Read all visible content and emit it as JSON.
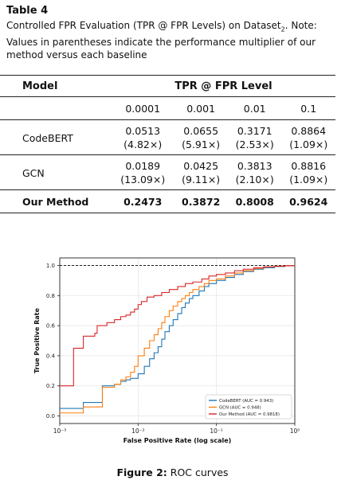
{
  "table": {
    "title": "Table 4",
    "caption_main": "Controlled FPR Evaluation (TPR @ FPR Levels) on Dataset",
    "caption_sub": "2",
    "caption_note": ". Note: Values in parentheses indicate the performance multiplier of our method versus each baseline",
    "header_model": "Model",
    "header_group": "TPR @ FPR Level",
    "fpr_levels": [
      "0.0001",
      "0.001",
      "0.01",
      "0.1"
    ],
    "rows": [
      {
        "model": "CodeBERT",
        "values": [
          "0.0513",
          "0.0655",
          "0.3171",
          "0.8864"
        ],
        "multipliers": [
          "(4.82×)",
          "(5.91×)",
          "(2.53×)",
          "(1.09×)"
        ]
      },
      {
        "model": "GCN",
        "values": [
          "0.0189",
          "0.0425",
          "0.3813",
          "0.8816"
        ],
        "multipliers": [
          "(13.09×)",
          "(9.11×)",
          "(2.10×)",
          "(1.09×)"
        ]
      },
      {
        "model": "Our Method",
        "values": [
          "0.2473",
          "0.3872",
          "0.8008",
          "0.9624"
        ]
      }
    ]
  },
  "figure": {
    "caption_label": "Figure 2:",
    "caption_text": " ROC curves"
  },
  "chart_data": {
    "type": "line",
    "xlabel": "False Positive Rate (log scale)",
    "ylabel": "True Positive Rate",
    "xscale": "log",
    "xlim": [
      0.001,
      1
    ],
    "ylim": [
      -0.05,
      1.05
    ],
    "x_tick_labels": [
      "10⁻³",
      "10⁻²",
      "10⁻¹",
      "10⁰"
    ],
    "x_ticks": [
      0.001,
      0.01,
      0.1,
      1
    ],
    "y_ticks": [
      0.0,
      0.2,
      0.4,
      0.6,
      0.8,
      1.0
    ],
    "y_tick_labels": [
      "0.0",
      "0.2",
      "0.4",
      "0.6",
      "0.8",
      "1.0"
    ],
    "grid": true,
    "legend_position": "lower-right",
    "reference_line": {
      "y": 1.0,
      "style": "dashed",
      "color": "#000000"
    },
    "series": [
      {
        "name": "CodeBERT (AUC = 0.943)",
        "color": "#1f77b4",
        "x": [
          0.001,
          0.002,
          0.002,
          0.0035,
          0.0035,
          0.005,
          0.006,
          0.007,
          0.008,
          0.009,
          0.01,
          0.012,
          0.014,
          0.016,
          0.018,
          0.02,
          0.022,
          0.025,
          0.028,
          0.032,
          0.036,
          0.04,
          0.045,
          0.05,
          0.06,
          0.07,
          0.08,
          0.1,
          0.13,
          0.17,
          0.22,
          0.3,
          0.4,
          0.55,
          0.75,
          1.0
        ],
        "y": [
          0.05,
          0.05,
          0.09,
          0.09,
          0.2,
          0.21,
          0.23,
          0.24,
          0.25,
          0.25,
          0.28,
          0.33,
          0.38,
          0.42,
          0.46,
          0.51,
          0.56,
          0.6,
          0.64,
          0.68,
          0.72,
          0.75,
          0.78,
          0.8,
          0.83,
          0.86,
          0.88,
          0.9,
          0.92,
          0.94,
          0.96,
          0.975,
          0.985,
          0.993,
          0.998,
          1.0
        ]
      },
      {
        "name": "GCN (AUC = 0.948)",
        "color": "#ff7f0e",
        "x": [
          0.001,
          0.002,
          0.002,
          0.0035,
          0.0035,
          0.005,
          0.006,
          0.007,
          0.008,
          0.009,
          0.01,
          0.012,
          0.014,
          0.016,
          0.018,
          0.02,
          0.022,
          0.025,
          0.028,
          0.032,
          0.036,
          0.04,
          0.045,
          0.05,
          0.06,
          0.07,
          0.08,
          0.1,
          0.13,
          0.17,
          0.22,
          0.3,
          0.4,
          0.55,
          0.75,
          1.0
        ],
        "y": [
          0.02,
          0.02,
          0.06,
          0.06,
          0.19,
          0.21,
          0.24,
          0.26,
          0.29,
          0.33,
          0.4,
          0.45,
          0.5,
          0.54,
          0.58,
          0.62,
          0.66,
          0.7,
          0.73,
          0.76,
          0.78,
          0.8,
          0.82,
          0.84,
          0.86,
          0.88,
          0.9,
          0.91,
          0.93,
          0.95,
          0.965,
          0.98,
          0.99,
          0.995,
          0.998,
          1.0
        ]
      },
      {
        "name": "Our Method (AUC = 0.9818)",
        "color": "#d62728",
        "x": [
          0.001,
          0.0015,
          0.0015,
          0.002,
          0.002,
          0.0028,
          0.003,
          0.004,
          0.005,
          0.006,
          0.007,
          0.008,
          0.009,
          0.01,
          0.011,
          0.013,
          0.016,
          0.02,
          0.025,
          0.032,
          0.04,
          0.05,
          0.065,
          0.08,
          0.1,
          0.13,
          0.17,
          0.22,
          0.3,
          0.4,
          0.55,
          0.75,
          1.0
        ],
        "y": [
          0.2,
          0.2,
          0.45,
          0.45,
          0.53,
          0.55,
          0.6,
          0.62,
          0.64,
          0.66,
          0.67,
          0.69,
          0.71,
          0.74,
          0.76,
          0.79,
          0.8,
          0.82,
          0.84,
          0.86,
          0.88,
          0.89,
          0.91,
          0.93,
          0.94,
          0.95,
          0.965,
          0.975,
          0.985,
          0.99,
          0.995,
          0.998,
          1.0
        ]
      }
    ]
  }
}
